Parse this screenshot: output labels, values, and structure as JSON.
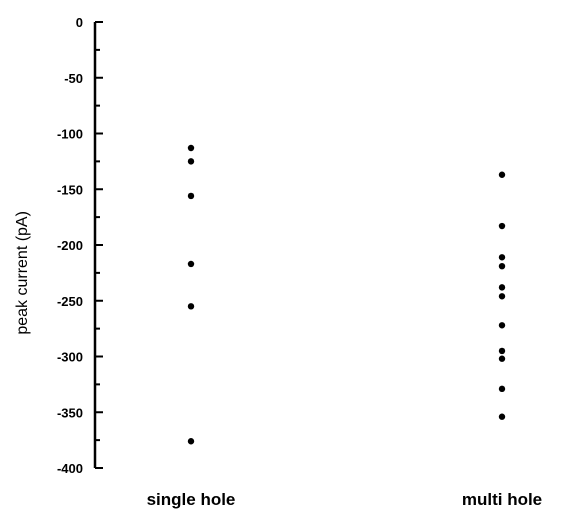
{
  "chart_data": {
    "type": "scatter",
    "title": "",
    "xlabel": "",
    "ylabel": "peak current (pA)",
    "categories": [
      "single hole",
      "multi hole"
    ],
    "ylim": [
      -400,
      0
    ],
    "yticks": [
      0,
      -50,
      -100,
      -150,
      -200,
      -250,
      -300,
      -350,
      -400
    ],
    "ytick_labels": [
      "0",
      "-50",
      "-100",
      "-150",
      "-200",
      "-250",
      "-300",
      "-350",
      "-400"
    ],
    "grid": false,
    "legend": "none",
    "point_color": "#000000",
    "series": [
      {
        "category": "single hole",
        "values": [
          -113,
          -125,
          -156,
          -217,
          -255,
          -376
        ]
      },
      {
        "category": "multi hole",
        "values": [
          -137,
          -183,
          -211,
          -219,
          -238,
          -246,
          -272,
          -295,
          -302,
          -329,
          -354
        ]
      }
    ]
  }
}
